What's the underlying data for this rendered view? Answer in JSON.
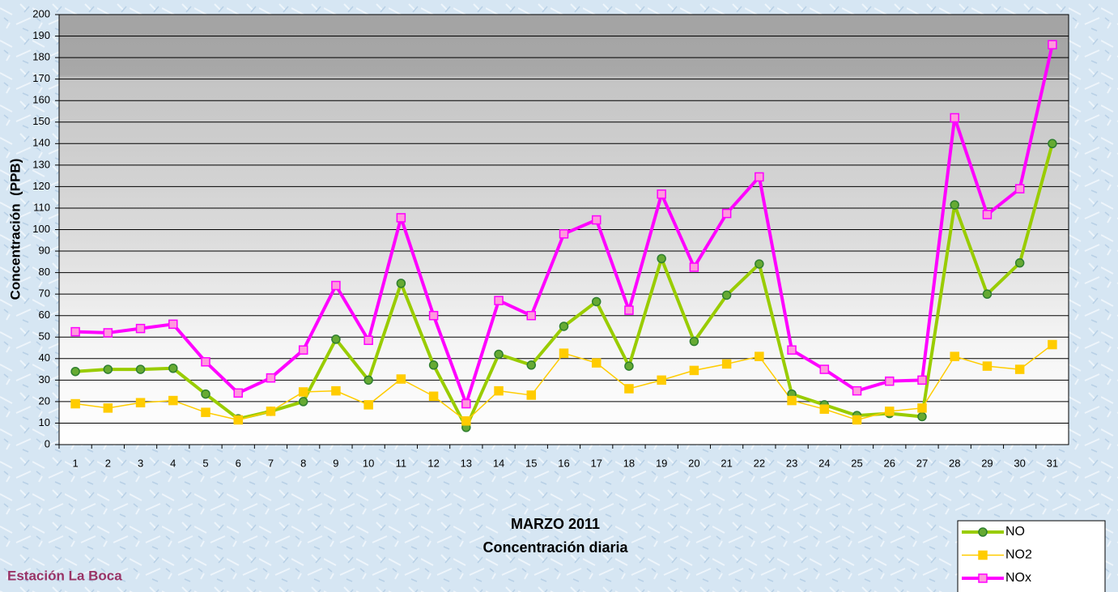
{
  "chart_data": {
    "type": "line",
    "title": "MARZO 2011",
    "subtitle": "Concentración diaria",
    "annotation": "Estación La Boca",
    "y_label": "Concentración  (PPB)",
    "categories": [
      "1",
      "2",
      "3",
      "4",
      "5",
      "6",
      "7",
      "8",
      "9",
      "10",
      "11",
      "12",
      "13",
      "14",
      "15",
      "16",
      "17",
      "18",
      "19",
      "20",
      "21",
      "22",
      "23",
      "24",
      "25",
      "26",
      "27",
      "28",
      "29",
      "30",
      "31"
    ],
    "series": [
      {
        "name": "NO",
        "color": "#99cc00",
        "marker": "circle",
        "marker_fill": "#66aa33",
        "marker_edge": "#2f7f2f",
        "line_width": 4,
        "values": [
          34,
          35,
          35,
          35.5,
          23.5,
          12,
          15.5,
          20,
          49,
          30,
          75,
          37,
          8,
          42,
          37,
          55,
          66.5,
          36.5,
          86.5,
          48,
          69.5,
          84,
          23.5,
          18.5,
          13.5,
          14.5,
          13,
          111.5,
          70,
          84.5,
          140
        ]
      },
      {
        "name": "NO2",
        "color": "#ffcc00",
        "marker": "square",
        "marker_fill": "#ffcc00",
        "marker_edge": "#ffcc00",
        "line_width": 1.5,
        "values": [
          19,
          17,
          19.5,
          20.5,
          15,
          11.5,
          15.5,
          24.5,
          25,
          18.5,
          30.5,
          22.5,
          11,
          25,
          23,
          42.5,
          38,
          26,
          30,
          34.5,
          37.5,
          41,
          20.5,
          16.5,
          11.5,
          15.5,
          17,
          41,
          36.5,
          35,
          46.5
        ]
      },
      {
        "name": "NOx",
        "color": "#ff00ff",
        "marker": "square",
        "marker_fill": "#ff99dd",
        "marker_edge": "#ff00ff",
        "line_width": 4,
        "values": [
          52.5,
          52,
          54,
          56,
          38.5,
          24,
          31,
          44,
          74,
          48.5,
          105.5,
          60,
          19,
          67,
          60,
          98,
          104.5,
          62.5,
          116.5,
          82.5,
          107.5,
          124.5,
          44,
          35,
          25,
          29.5,
          30,
          152,
          107,
          119,
          186
        ]
      }
    ],
    "ylim": [
      0,
      200
    ],
    "yticks": [
      0,
      10,
      20,
      30,
      40,
      50,
      60,
      70,
      80,
      90,
      100,
      110,
      120,
      130,
      140,
      150,
      160,
      170,
      180,
      190,
      200
    ],
    "grid": true,
    "legend": "bottom-right"
  }
}
